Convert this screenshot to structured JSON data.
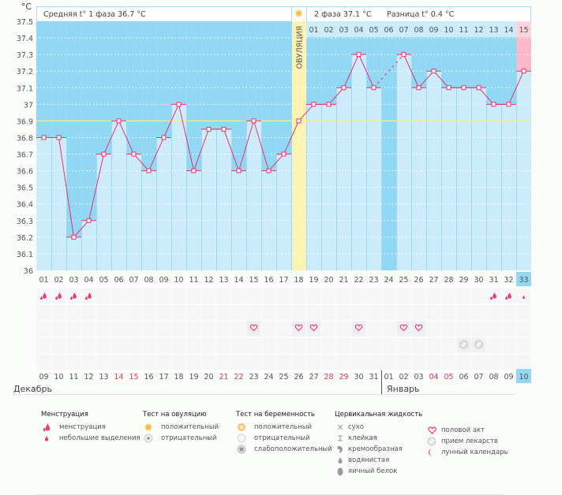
{
  "chart_data": {
    "type": "line",
    "title": "",
    "ylabel": "°C",
    "ylim": [
      36.0,
      37.5
    ],
    "yticks": [
      "37.5",
      "37.4",
      "37.3",
      "37.2",
      "37.1",
      "37",
      "36.9",
      "36.8",
      "36.7",
      "36.6",
      "36.5",
      "36.4",
      "36.3",
      "36.2",
      "36.1",
      "36"
    ],
    "coverline": 36.9,
    "cycle_days": [
      "01",
      "02",
      "03",
      "04",
      "05",
      "06",
      "07",
      "08",
      "09",
      "10",
      "11",
      "12",
      "13",
      "14",
      "15",
      "16",
      "17",
      "18",
      "19",
      "20",
      "21",
      "22",
      "23",
      "24",
      "25",
      "26",
      "27",
      "28",
      "29",
      "30",
      "31",
      "32",
      "33"
    ],
    "temperatures": [
      36.8,
      36.8,
      36.2,
      36.3,
      36.7,
      36.9,
      36.7,
      36.6,
      36.8,
      37.0,
      36.6,
      36.85,
      36.85,
      36.6,
      36.9,
      36.6,
      36.7,
      36.9,
      37.0,
      37.0,
      37.1,
      37.3,
      37.1,
      null,
      37.3,
      37.1,
      37.2,
      37.1,
      37.1,
      37.1,
      37.0,
      37.0,
      37.2
    ],
    "ovulation_day": 18,
    "current_day": 33,
    "phase2_days": [
      "01",
      "02",
      "03",
      "04",
      "05",
      "06",
      "07",
      "08",
      "09",
      "10",
      "11",
      "12",
      "13",
      "14",
      "15"
    ],
    "ovulation_label": "ОВУЛЯЦИЯ",
    "calendar_dates": [
      "09",
      "10",
      "11",
      "12",
      "13",
      "14",
      "15",
      "16",
      "17",
      "18",
      "19",
      "20",
      "21",
      "22",
      "23",
      "24",
      "25",
      "26",
      "27",
      "28",
      "29",
      "30",
      "31",
      "01",
      "02",
      "03",
      "04",
      "05",
      "06",
      "07",
      "08",
      "09",
      "10"
    ],
    "weekend_indices": [
      5,
      6,
      12,
      13,
      19,
      20,
      26,
      27
    ],
    "months": [
      {
        "label": "Декабрь",
        "start_index": 0
      },
      {
        "label": "Январь",
        "start_index": 23
      }
    ],
    "menstruation": {
      "heavy": [
        1,
        2,
        3,
        4,
        31,
        32
      ],
      "light": [
        33
      ]
    },
    "intercourse_days": [
      15,
      18,
      19,
      22,
      25,
      26
    ],
    "medication_days": [
      29,
      30
    ]
  },
  "header": {
    "phase1": "Средняя t° 1 фаза 36.7 °C",
    "phase2": "2 фаза 37.1 °C",
    "difference": "Разница t° 0.4 °C"
  },
  "legend": {
    "menstruation": {
      "title": "Менструация",
      "items": [
        "менструация",
        "небольшие выделения"
      ]
    },
    "ovulation_test": {
      "title": "Тест на овуляцию",
      "items": [
        "положительный",
        "отрицательный"
      ]
    },
    "pregnancy_test": {
      "title": "Тест на беременность",
      "items": [
        "положительный",
        "отрицательный",
        "слабоположительный"
      ]
    },
    "cervical": {
      "title": "Цервикальная жидкость",
      "items": [
        "сухо",
        "клейкая",
        "кремообразная",
        "водянистая",
        "яичный белок"
      ]
    },
    "other": {
      "items": [
        "половой акт",
        "прием лекарств",
        "лунный календарь"
      ]
    }
  },
  "colors": {
    "bg_top": "#92d7f3",
    "bar": "#cdecfb",
    "ovulation": "#fdf3b4",
    "pink": "#fdb8cb",
    "line": "#e8336b",
    "coverline": "#f3ef8a"
  }
}
